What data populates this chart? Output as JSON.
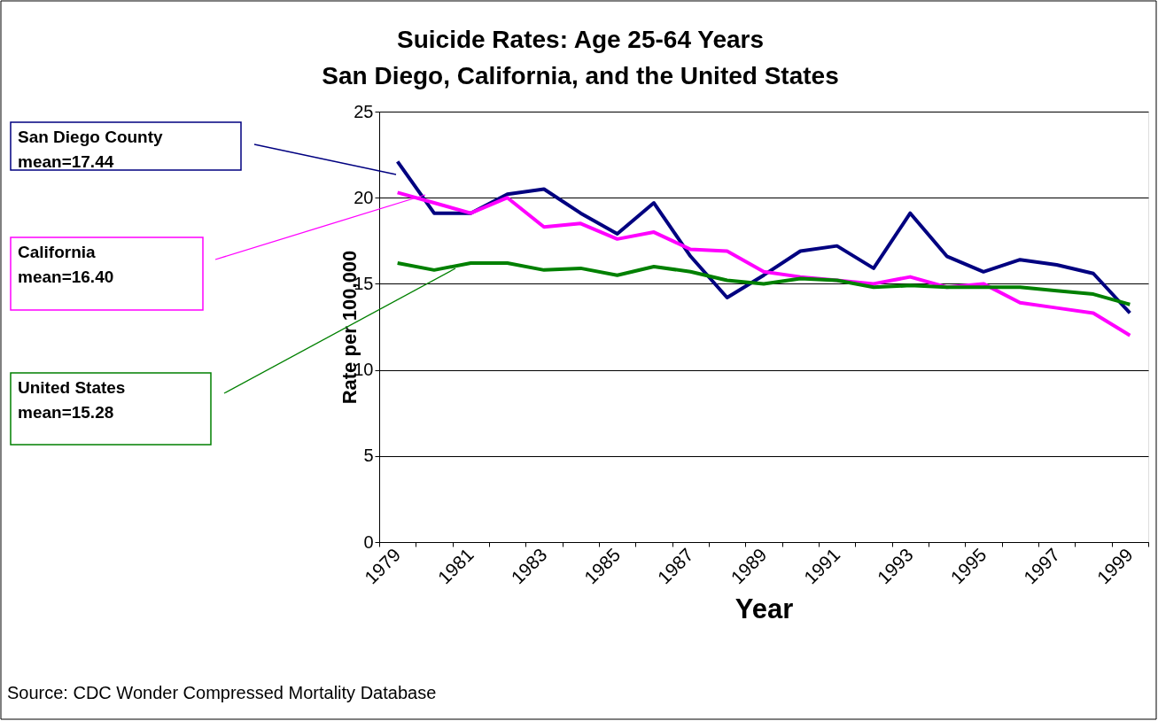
{
  "chart_data": {
    "type": "line",
    "title": "Suicide Rates: Age 25-64 Years",
    "subtitle": "San Diego, California, and the United States",
    "xlabel": "Year",
    "ylabel": "Rate per 100,000",
    "categories": [
      "1979",
      null,
      "1981",
      null,
      "1983",
      null,
      "1985",
      null,
      "1987",
      null,
      "1989",
      null,
      "1991",
      null,
      "1993",
      null,
      "1995",
      null,
      "1997",
      null,
      "1999"
    ],
    "series": [
      {
        "color": "#000080",
        "values": [
          22.1,
          19.1,
          19.1,
          20.2,
          20.5,
          19.1,
          17.9,
          19.7,
          16.6,
          14.2,
          15.5,
          16.9,
          17.2,
          15.9,
          19.1,
          16.6,
          15.7,
          16.4,
          16.1,
          15.6,
          13.3
        ]
      },
      {
        "color": "#ff00ff",
        "values": [
          20.3,
          19.7,
          19.1,
          20.0,
          18.3,
          18.5,
          17.6,
          18.0,
          17.0,
          16.9,
          15.7,
          15.4,
          15.2,
          15.0,
          15.4,
          14.8,
          15.0,
          13.9,
          13.6,
          13.3,
          12.0
        ]
      },
      {
        "color": "#008000",
        "values": [
          16.2,
          15.8,
          16.2,
          16.2,
          15.8,
          15.9,
          15.5,
          16.0,
          15.7,
          15.2,
          15.0,
          15.3,
          15.2,
          14.8,
          14.9,
          14.8,
          14.8,
          14.8,
          14.6,
          14.4,
          13.8
        ]
      }
    ],
    "ylim": [
      0,
      25
    ],
    "yticks": [
      0,
      5,
      10,
      15,
      20,
      25
    ],
    "grid": "y",
    "legend": false,
    "marker": "none",
    "line_style": "solid",
    "annotations": [
      "San Diego County\nmean=17.44",
      "California\nmean=16.40",
      "United States\nmean=15.28",
      "Source: CDC Wonder Compressed Mortality Database"
    ]
  }
}
